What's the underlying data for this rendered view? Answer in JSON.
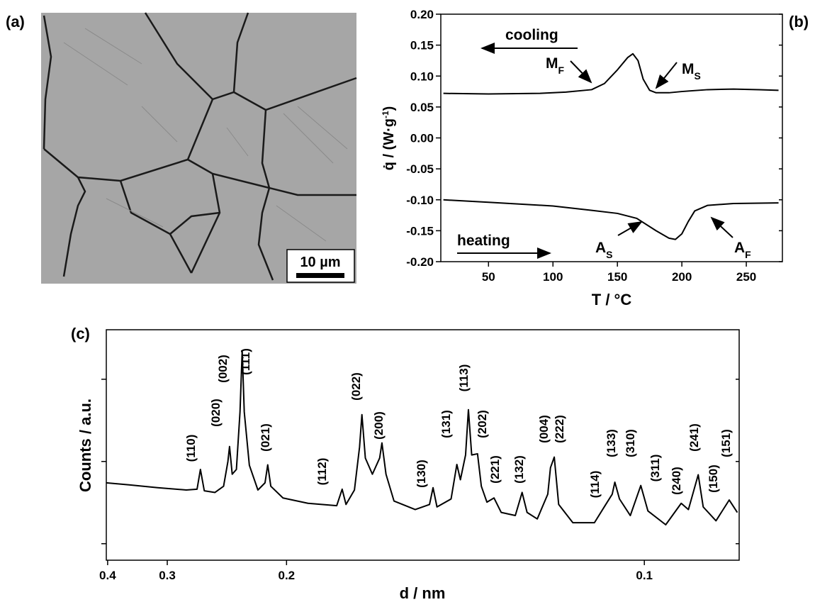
{
  "micrograph": {
    "label": "(a)",
    "scale_bar": "10 µm"
  },
  "chart_data": [
    {
      "type": "line",
      "label": "(b)",
      "xlabel": "T / °C",
      "ylabel": [
        "q̇ / (W·g",
        "-1",
        ")"
      ],
      "xlim": [
        13,
        278
      ],
      "xticks": [
        50,
        100,
        150,
        200,
        250
      ],
      "ylim": [
        -0.2,
        0.2
      ],
      "yticks": [
        {
          "value": -0.2,
          "label": "-0.20"
        },
        {
          "value": -0.15,
          "label": "-0.15"
        },
        {
          "value": -0.1,
          "label": "-0.10"
        },
        {
          "value": -0.05,
          "label": "-0.05"
        },
        {
          "value": 0,
          "label": "0.00"
        },
        {
          "value": 0.05,
          "label": "0.05"
        },
        {
          "value": 0.1,
          "label": "0.10"
        },
        {
          "value": 0.15,
          "label": "0.15"
        },
        {
          "value": 0.2,
          "label": "0.20"
        }
      ],
      "series": [
        {
          "color": "#000000",
          "x": [
            15,
            50,
            90,
            110,
            130,
            140,
            150,
            158,
            162,
            166,
            170,
            175,
            180,
            190,
            200,
            220,
            240,
            260,
            275
          ],
          "values": [
            0.072,
            0.071,
            0.072,
            0.074,
            0.078,
            0.088,
            0.11,
            0.13,
            0.136,
            0.125,
            0.095,
            0.077,
            0.073,
            0.073,
            0.075,
            0.078,
            0.079,
            0.078,
            0.077
          ]
        },
        {
          "color": "#000000",
          "x": [
            15,
            50,
            100,
            130,
            150,
            165,
            180,
            190,
            195,
            200,
            205,
            210,
            220,
            240,
            275
          ],
          "values": [
            -0.1,
            -0.104,
            -0.11,
            -0.117,
            -0.122,
            -0.13,
            -0.15,
            -0.162,
            -0.164,
            -0.155,
            -0.135,
            -0.118,
            -0.109,
            -0.106,
            -0.105
          ]
        }
      ],
      "annotations": [
        {
          "text": "cooling"
        },
        {
          "text": "M",
          "sub": "F"
        },
        {
          "text": "M",
          "sub": "S"
        },
        {
          "text": "heating"
        },
        {
          "text": "A",
          "sub": "S"
        },
        {
          "text": "A",
          "sub": "F"
        }
      ]
    },
    {
      "type": "line",
      "label": "(c)",
      "xlabel": "d / nm",
      "ylabel": [
        "Counts / a.u."
      ],
      "xscale": "reciprocal",
      "yscale": "log",
      "xlim": [
        0.403,
        0.0883
      ],
      "xticks": [
        0.4,
        0.3,
        0.2,
        0.1
      ],
      "ylim": [
        6.3,
        4000
      ],
      "yticks": [
        10,
        100,
        1000
      ],
      "ytick_labels": false,
      "x": [
        0.4032,
        0.3571,
        0.3125,
        0.2778,
        0.2667,
        0.2634,
        0.2597,
        0.25,
        0.2427,
        0.2392,
        0.2379,
        0.2358,
        0.2326,
        0.2299,
        0.2283,
        0.2268,
        0.2232,
        0.2174,
        0.2128,
        0.2111,
        0.2092,
        0.202,
        0.1887,
        0.1754,
        0.1731,
        0.1715,
        0.1681,
        0.1661,
        0.1652,
        0.1639,
        0.1613,
        0.1587,
        0.1579,
        0.1565,
        0.1538,
        0.1471,
        0.1429,
        0.1419,
        0.1408,
        0.137,
        0.1355,
        0.1346,
        0.1333,
        0.1326,
        0.1318,
        0.1304,
        0.1295,
        0.1282,
        0.1266,
        0.125,
        0.122,
        0.1206,
        0.1196,
        0.1176,
        0.1156,
        0.1151,
        0.1144,
        0.1136,
        0.1111,
        0.1075,
        0.1057,
        0.1047,
        0.1043,
        0.1036,
        0.102,
        0.1005,
        0.0995,
        0.0971,
        0.0951,
        0.0942,
        0.093,
        0.0924,
        0.0909,
        0.0894,
        0.0885
      ],
      "series": [
        {
          "color": "#000000",
          "values": [
            55,
            52,
            48,
            45,
            46,
            80,
            44,
            42,
            50,
            100,
            152,
            70,
            80,
            400,
            2213,
            400,
            90,
            45,
            55,
            91,
            50,
            36,
            31,
            29,
            46,
            30,
            45,
            150,
            371,
            110,
            70,
            110,
            168,
            70,
            33,
            26,
            30,
            48,
            28,
            35,
            92,
            60,
            120,
            426,
            120,
            124,
            50,
            32,
            36,
            24,
            22,
            42,
            24,
            20,
            40,
            84,
            113,
            30,
            18,
            18,
            30,
            40,
            56,
            35,
            22,
            51,
            25,
            17,
            31,
            26,
            69,
            28,
            19,
            34,
            24
          ]
        }
      ],
      "annotations": [
        {
          "text": "(110)"
        },
        {
          "text": "(020)"
        },
        {
          "text": "(002)"
        },
        {
          "text": "(111)"
        },
        {
          "text": "(021)"
        },
        {
          "text": "(112)"
        },
        {
          "text": "(022)"
        },
        {
          "text": "(200)"
        },
        {
          "text": "(130)"
        },
        {
          "text": "(131)"
        },
        {
          "text": "(113)"
        },
        {
          "text": "(202)"
        },
        {
          "text": "(221)"
        },
        {
          "text": "(132)"
        },
        {
          "text": "(004)"
        },
        {
          "text": "(222)"
        },
        {
          "text": "(114)"
        },
        {
          "text": "(133)"
        },
        {
          "text": "(310)"
        },
        {
          "text": "(311)"
        },
        {
          "text": "(240)"
        },
        {
          "text": "(241)"
        },
        {
          "text": "(150)"
        },
        {
          "text": "(151)"
        }
      ]
    }
  ]
}
